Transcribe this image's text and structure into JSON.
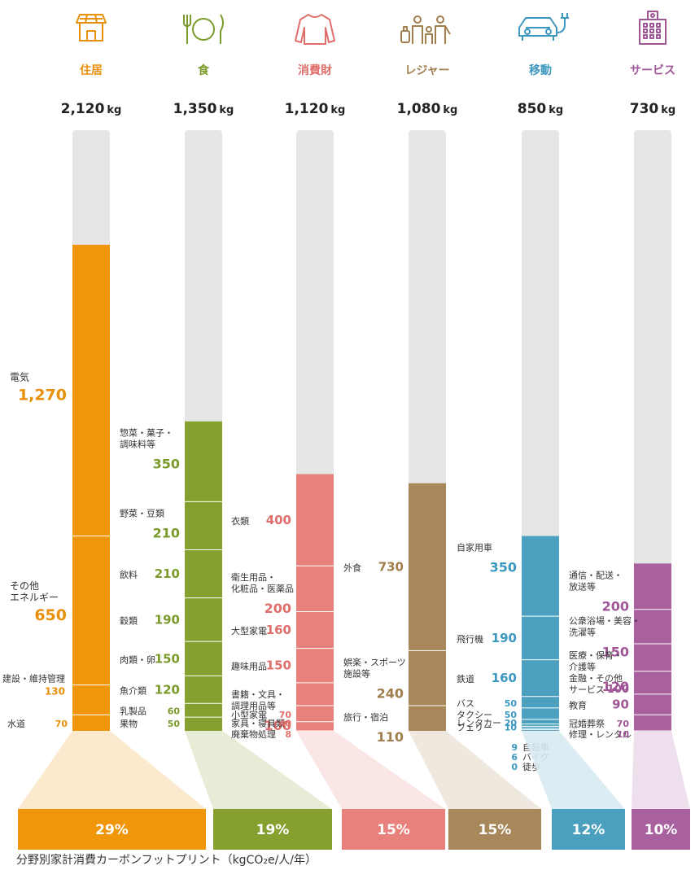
{
  "caption": "分野別家計消費カーボンフットプリント（kgCO₂e/人/年）",
  "unit": "kg",
  "chart_data": {
    "type": "bar",
    "stacked": true,
    "title": "",
    "ylim": [
      0,
      2620
    ],
    "categories": [
      {
        "key": "housing",
        "name": "住居",
        "total_label": "2,120",
        "total": 2120,
        "color": "#f0960a",
        "label_color": "#e8900a",
        "share": "29%",
        "icon": "house-icon",
        "segments": [
          {
            "name": "電気",
            "value": 1270,
            "value_label": "1,270",
            "style": "big"
          },
          {
            "name": "その他\nエネルギー",
            "value": 650,
            "value_label": "650",
            "style": "big"
          },
          {
            "name": "建設・維持管理",
            "value": 130,
            "value_label": "130",
            "style": "small-below"
          },
          {
            "name": "水道",
            "value": 70,
            "value_label": "70",
            "style": "inline"
          }
        ]
      },
      {
        "key": "food",
        "name": "食",
        "total_label": "1,350",
        "total": 1350,
        "color": "#86a02f",
        "label_color": "#7a9b2b",
        "share": "19%",
        "icon": "plate-cutlery-icon",
        "segments": [
          {
            "name": "惣菜・菓子・\n調味料等",
            "value": 350,
            "value_label": "350",
            "style": "below"
          },
          {
            "name": "野菜・豆類",
            "value": 210,
            "value_label": "210",
            "style": "below"
          },
          {
            "name": "飲料",
            "value": 210,
            "value_label": "210",
            "style": "inline"
          },
          {
            "name": "穀類",
            "value": 190,
            "value_label": "190",
            "style": "inline"
          },
          {
            "name": "肉類・卵",
            "value": 150,
            "value_label": "150",
            "style": "inline"
          },
          {
            "name": "魚介類",
            "value": 120,
            "value_label": "120",
            "style": "inline"
          },
          {
            "name": "乳製品",
            "value": 60,
            "value_label": "60",
            "style": "inline"
          },
          {
            "name": "果物",
            "value": 50,
            "value_label": "50",
            "style": "inline"
          }
        ]
      },
      {
        "key": "goods",
        "name": "消費財",
        "total_label": "1,120",
        "total": 1120,
        "color": "#e8807c",
        "label_color": "#e06f6b",
        "share": "15%",
        "icon": "sweater-icon",
        "segments": [
          {
            "name": "衣類",
            "value": 400,
            "value_label": "400",
            "style": "inline"
          },
          {
            "name": "衛生用品・\n化粧品・医薬品",
            "value": 200,
            "value_label": "200",
            "style": "below"
          },
          {
            "name": "大型家電",
            "value": 160,
            "value_label": "160",
            "style": "inline"
          },
          {
            "name": "趣味用品",
            "value": 150,
            "value_label": "150",
            "style": "inline"
          },
          {
            "name": "書籍・文具・\n調理用品等",
            "value": 100,
            "value_label": "100",
            "style": "below"
          },
          {
            "name": "小型家電",
            "value": 70,
            "value_label": "70",
            "style": "inline"
          },
          {
            "name": "家具・寝具類",
            "value": 40,
            "value_label": "40",
            "style": "inline"
          },
          {
            "name": "廃棄物処理",
            "value": 8,
            "value_label": "8",
            "style": "inline"
          }
        ]
      },
      {
        "key": "leisure",
        "name": "レジャー",
        "total_label": "1,080",
        "total": 1080,
        "color": "#a8885a",
        "label_color": "#a07e4e",
        "share": "15%",
        "icon": "family-luggage-icon",
        "segments": [
          {
            "name": "外食",
            "value": 730,
            "value_label": "730",
            "style": "inline"
          },
          {
            "name": "娯楽・スポーツ\n施設等",
            "value": 240,
            "value_label": "240",
            "style": "below"
          },
          {
            "name": "旅行・宿泊",
            "value": 110,
            "value_label": "110",
            "style": "below"
          }
        ]
      },
      {
        "key": "mobility",
        "name": "移動",
        "total_label": "850",
        "total": 850,
        "color": "#4ba0c0",
        "label_color": "#3d98c0",
        "share": "12%",
        "icon": "electric-car-icon",
        "segments": [
          {
            "name": "自家用車",
            "value": 350,
            "value_label": "350",
            "style": "below"
          },
          {
            "name": "飛行機",
            "value": 190,
            "value_label": "190",
            "style": "inline"
          },
          {
            "name": "鉄道",
            "value": 160,
            "value_label": "160",
            "style": "inline"
          },
          {
            "name": "バス",
            "value": 50,
            "value_label": "50",
            "style": "inline"
          },
          {
            "name": "タクシー",
            "value": 50,
            "value_label": "50",
            "style": "inline"
          },
          {
            "name": "レンタカー",
            "value": 20,
            "value_label": "20",
            "style": "inline"
          },
          {
            "name": "フェリー",
            "value": 10,
            "value_label": "10",
            "style": "inline"
          },
          {
            "name": "自転車",
            "value": 9,
            "value_label": "9",
            "style": "under"
          },
          {
            "name": "バイク",
            "value": 6,
            "value_label": "6",
            "style": "under"
          },
          {
            "name": "徒歩",
            "value": 0,
            "value_label": "0",
            "style": "under"
          }
        ]
      },
      {
        "key": "services",
        "name": "サービス",
        "total_label": "730",
        "total": 730,
        "color": "#a8609e",
        "label_color": "#a05596",
        "share": "10%",
        "icon": "building-icon",
        "segments": [
          {
            "name": "通信・配送・\n放送等",
            "value": 200,
            "value_label": "200",
            "style": "below"
          },
          {
            "name": "公衆浴場・美容・\n洗濯等",
            "value": 150,
            "value_label": "150",
            "style": "below"
          },
          {
            "name": "医療・保育・\n介護等",
            "value": 120,
            "value_label": "120",
            "style": "below"
          },
          {
            "name": "金融・その他\nサービス",
            "value": 100,
            "value_label": "100",
            "style": "inline"
          },
          {
            "name": "教育",
            "value": 90,
            "value_label": "90",
            "style": "inline"
          },
          {
            "name": "冠婚葬祭",
            "value": 70,
            "value_label": "70",
            "style": "inline"
          },
          {
            "name": "修理・レンタル",
            "value": 10,
            "value_label": "10",
            "style": "inline"
          }
        ]
      }
    ]
  }
}
